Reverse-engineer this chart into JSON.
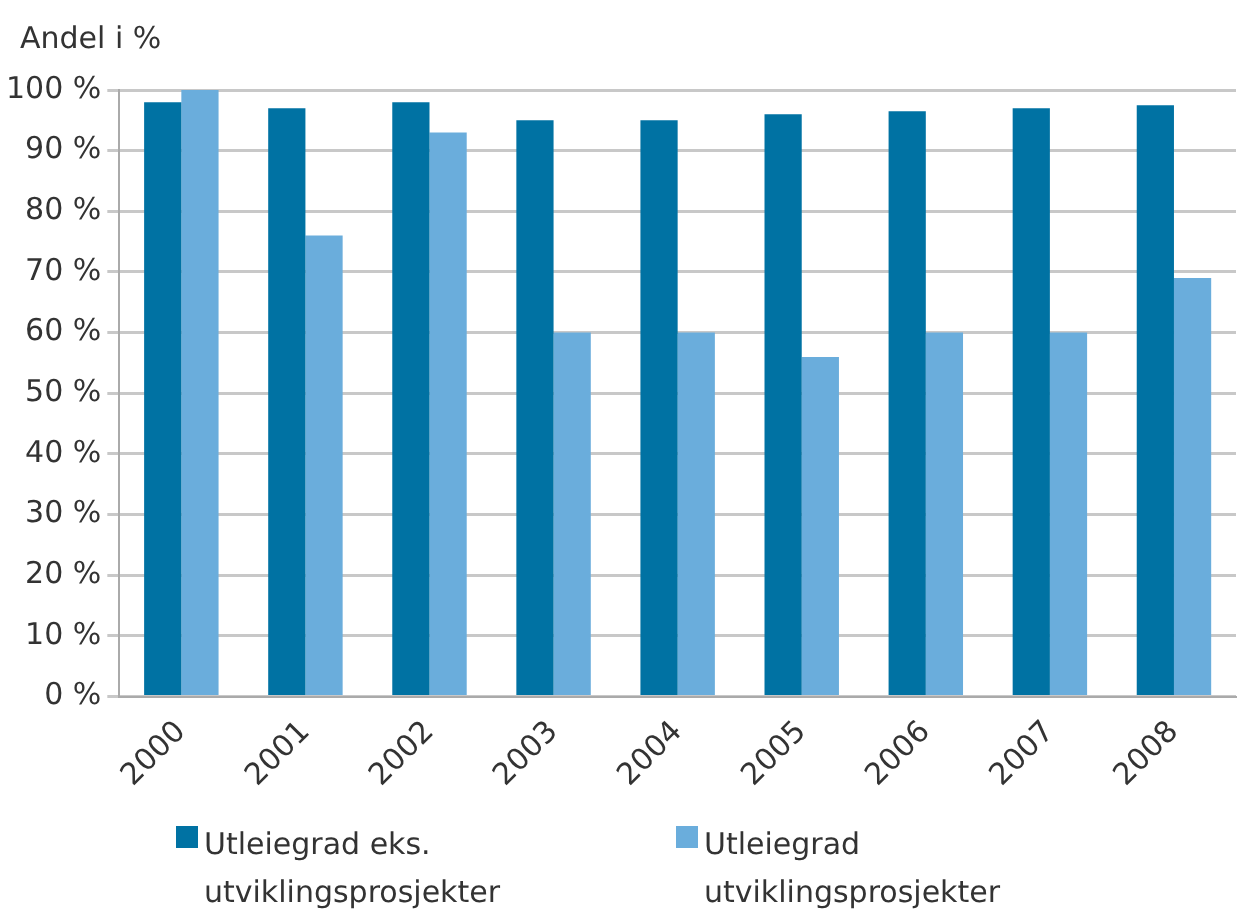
{
  "chart_data": {
    "type": "bar",
    "ylabel": "Andel i %",
    "categories": [
      "2000",
      "2001",
      "2002",
      "2003",
      "2004",
      "2005",
      "2006",
      "2007",
      "2008"
    ],
    "series": [
      {
        "name": "Utleiegrad eks. utviklingsprosjekter",
        "color": "#0072a3",
        "values": [
          98,
          97,
          98,
          95,
          95,
          96,
          96.5,
          97,
          97.5
        ]
      },
      {
        "name": "Utleiegrad utviklingsprosjekter",
        "color": "#6aaddc",
        "values": [
          100,
          76,
          93,
          60,
          60,
          56,
          60,
          60,
          69
        ]
      }
    ],
    "ylim": [
      0,
      100
    ],
    "yticks": [
      {
        "value": 0,
        "label": "0 %"
      },
      {
        "value": 10,
        "label": "10 %"
      },
      {
        "value": 20,
        "label": "20 %"
      },
      {
        "value": 30,
        "label": "30 %"
      },
      {
        "value": 40,
        "label": "40 %"
      },
      {
        "value": 50,
        "label": "50 %"
      },
      {
        "value": 60,
        "label": "60 %"
      },
      {
        "value": 70,
        "label": "70 %"
      },
      {
        "value": 80,
        "label": "80 %"
      },
      {
        "value": 90,
        "label": "90 %"
      },
      {
        "value": 100,
        "label": "100 %"
      }
    ],
    "grid": "y",
    "legend": "bottom"
  }
}
